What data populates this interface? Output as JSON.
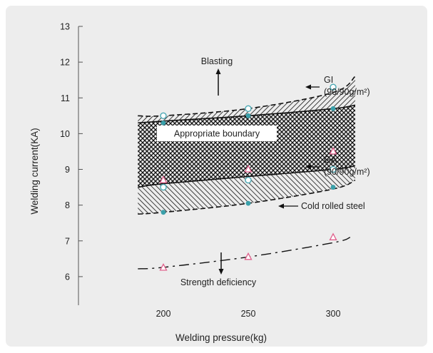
{
  "chart_data": {
    "type": "scatter",
    "title": "",
    "xlabel": "Welding pressure(kg)",
    "ylabel": "Welding current(KA)",
    "xlim": [
      150,
      350
    ],
    "ylim": [
      5.2,
      13
    ],
    "x_ticks": [
      200,
      250,
      300
    ],
    "y_ticks": [
      6,
      7,
      8,
      9,
      10,
      11,
      12,
      13
    ],
    "grid": false,
    "bands": [
      {
        "name": "GI",
        "label_line2": "(90/90g/m²)",
        "pattern": "hatch-forward",
        "upper": {
          "x": [
            185,
            200,
            250,
            300,
            313
          ],
          "y": [
            10.5,
            10.5,
            10.7,
            11.15,
            11.6
          ]
        },
        "lower": {
          "x": [
            185,
            200,
            250,
            300,
            313
          ],
          "y": [
            10.3,
            10.35,
            10.5,
            10.7,
            10.8
          ]
        }
      },
      {
        "name": "GA",
        "label_line2": "(90/90g/m²)",
        "pattern": "crosshatch",
        "upper": {
          "x": [
            185,
            200,
            250,
            300,
            313
          ],
          "y": [
            10.3,
            10.35,
            10.5,
            10.7,
            10.8
          ]
        },
        "lower": {
          "x": [
            185,
            200,
            250,
            300,
            313
          ],
          "y": [
            8.5,
            8.6,
            8.8,
            9.0,
            9.1
          ]
        }
      },
      {
        "name": "Cold rolled steel",
        "label_line2": "",
        "pattern": "hatch-back",
        "upper": {
          "x": [
            185,
            200,
            250,
            300,
            313
          ],
          "y": [
            8.5,
            8.6,
            8.8,
            9.0,
            9.1
          ]
        },
        "lower": {
          "x": [
            185,
            200,
            250,
            300,
            313
          ],
          "y": [
            7.75,
            7.8,
            8.05,
            8.45,
            8.7
          ]
        }
      }
    ],
    "dashed_curve": {
      "x": [
        185,
        200,
        250,
        300,
        310
      ],
      "y": [
        6.22,
        6.26,
        6.55,
        6.95,
        7.1
      ]
    },
    "series": [
      {
        "marker": "circle-open",
        "color": "#4aa8b4",
        "x": [
          200,
          250,
          300,
          200,
          250,
          300
        ],
        "y": [
          10.5,
          10.7,
          11.3,
          8.5,
          8.7,
          9.0
        ]
      },
      {
        "marker": "circle-filled",
        "color": "#3aa0aa",
        "x": [
          200,
          250,
          300,
          200,
          250,
          300
        ],
        "y": [
          10.3,
          10.5,
          10.7,
          7.8,
          8.05,
          8.5
        ]
      },
      {
        "marker": "triangle-open",
        "color": "#e0608c",
        "x": [
          200,
          250,
          300,
          200,
          250,
          300
        ],
        "y": [
          8.7,
          9.0,
          9.5,
          6.25,
          6.55,
          7.1
        ]
      }
    ],
    "annotations": {
      "blasting": "Blasting",
      "strength_deficiency": "Strength deficiency",
      "appropriate_boundary": "Appropriate boundary"
    }
  }
}
